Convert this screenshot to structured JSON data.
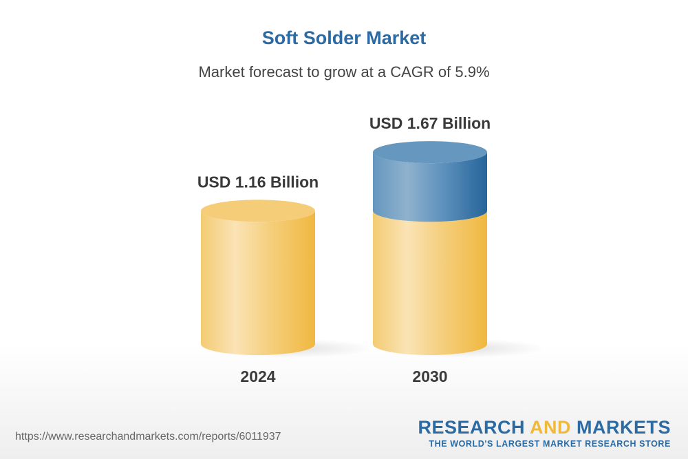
{
  "title": "Soft Solder Market",
  "subtitle": "Market forecast to grow at a CAGR of 5.9%",
  "chart_data": {
    "type": "bar",
    "style": "3d-cylinder",
    "title": "Soft Solder Market",
    "subtitle": "Market forecast to grow at a CAGR of 5.9%",
    "categories": [
      "2024",
      "2030"
    ],
    "values": [
      1.16,
      1.67
    ],
    "data_labels": [
      "USD 1.16 Billion",
      "USD 1.67 Billion"
    ],
    "unit": "USD Billion",
    "colors": {
      "base": "#f3c35a",
      "growth": "#2a6a9e"
    }
  },
  "footer": {
    "url": "https://www.researchandmarkets.com/reports/6011937",
    "logo_word1": "RESEARCH",
    "logo_word2": "AND",
    "logo_word3": "MARKETS",
    "tagline": "THE WORLD'S LARGEST MARKET RESEARCH STORE"
  }
}
